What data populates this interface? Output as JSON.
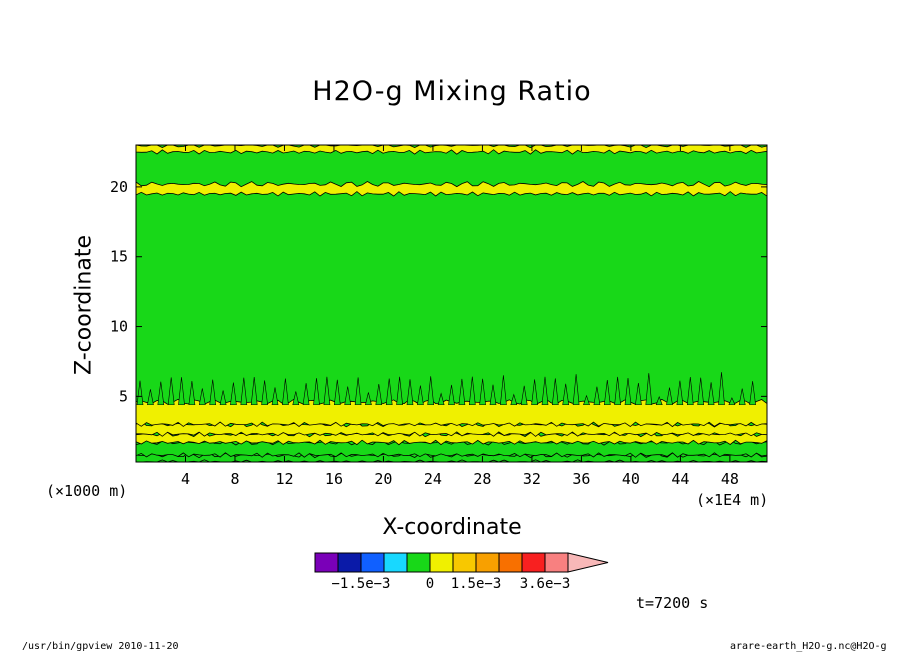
{
  "chart_data": {
    "type": "contour",
    "title": "H2O-g Mixing Ratio",
    "xlabel": "X-coordinate",
    "ylabel": "Z-coordinate",
    "x_unit_label": "(×1000 m)",
    "x_scale_label": "(×1E4 m)",
    "xlim": [
      0,
      51
    ],
    "ylim": [
      0.3,
      23
    ],
    "xticks": [
      4,
      8,
      12,
      16,
      20,
      24,
      28,
      32,
      36,
      40,
      44,
      48
    ],
    "yticks": [
      5,
      10,
      15,
      20
    ],
    "bands": [
      {
        "z0": 0.3,
        "z1": 0.8,
        "level": 0
      },
      {
        "z0": 0.8,
        "z1": 1.7,
        "level": 0
      },
      {
        "z0": 1.7,
        "z1": 2.3,
        "level": 1
      },
      {
        "z0": 2.3,
        "z1": 3.0,
        "level": 1
      },
      {
        "z0": 3.0,
        "z1": 4.6,
        "level": 1
      },
      {
        "z0": 19.5,
        "z1": 20.2,
        "level": 1
      },
      {
        "z0": 22.5,
        "z1": 23.0,
        "level": 1
      }
    ],
    "colorbar": {
      "colors": [
        "#7a00b8",
        "#0a1aa8",
        "#1060ff",
        "#18d8ff",
        "#18d818",
        "#f0f000",
        "#f8c800",
        "#f8a000",
        "#f87000",
        "#f82020",
        "#f88080",
        "#f8b8b8"
      ],
      "tick_labels": [
        "−1.5e−3",
        "0",
        "1.5e−3",
        "3.6e−3"
      ]
    },
    "fill_colors": {
      "neutral": "#18d818",
      "positive": "#f0f000"
    },
    "time_label": "t=7200 s"
  },
  "footer": {
    "left": "/usr/bin/gpview   2010-11-20",
    "right": "arare-earth_H2O-g.nc@H2O-g"
  }
}
